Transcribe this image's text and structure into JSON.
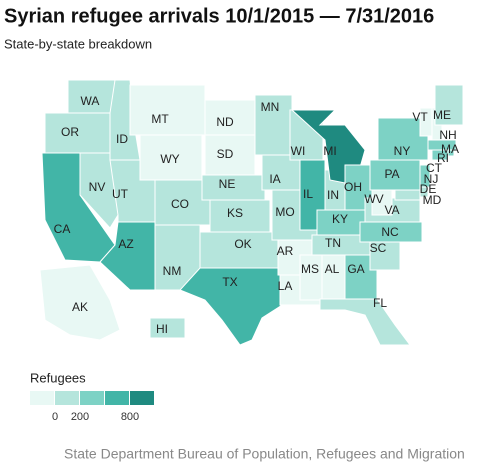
{
  "header": {
    "title": "Syrian refugee arrivals 10/1/2015 — 7/31/2016",
    "subtitle": "State-by-state breakdown"
  },
  "map": {
    "states": [
      {
        "label": "WA",
        "color": "#b5e5dc"
      },
      {
        "label": "OR",
        "color": "#b5e5dc"
      },
      {
        "label": "CA",
        "color": "#42b5a7"
      },
      {
        "label": "NV",
        "color": "#b5e5dc"
      },
      {
        "label": "ID",
        "color": "#b5e5dc"
      },
      {
        "label": "MT",
        "color": "#e8f8f4"
      },
      {
        "label": "WY",
        "color": "#e8f8f4"
      },
      {
        "label": "UT",
        "color": "#b5e5dc"
      },
      {
        "label": "CO",
        "color": "#b5e5dc"
      },
      {
        "label": "AZ",
        "color": "#42b5a7"
      },
      {
        "label": "NM",
        "color": "#b5e5dc"
      },
      {
        "label": "ND",
        "color": "#e8f8f4"
      },
      {
        "label": "SD",
        "color": "#e8f8f4"
      },
      {
        "label": "NE",
        "color": "#b5e5dc"
      },
      {
        "label": "KS",
        "color": "#b5e5dc"
      },
      {
        "label": "TX",
        "color": "#42b5a7"
      },
      {
        "label": "OK",
        "color": "#b5e5dc"
      },
      {
        "label": "MN",
        "color": "#b5e5dc"
      },
      {
        "label": "IA",
        "color": "#b5e5dc"
      },
      {
        "label": "MO",
        "color": "#b5e5dc"
      },
      {
        "label": "AR",
        "color": "#e8f8f4"
      },
      {
        "label": "LA",
        "color": "#e8f8f4"
      },
      {
        "label": "WI",
        "color": "#b5e5dc"
      },
      {
        "label": "IL",
        "color": "#42b5a7"
      },
      {
        "label": "IN",
        "color": "#b5e5dc"
      },
      {
        "label": "MI",
        "color": "#1f8a80"
      },
      {
        "label": "OH",
        "color": "#7dd2c5"
      },
      {
        "label": "KY",
        "color": "#7dd2c5"
      },
      {
        "label": "TN",
        "color": "#b5e5dc"
      },
      {
        "label": "MS",
        "color": "#e8f8f4"
      },
      {
        "label": "AL",
        "color": "#e8f8f4"
      },
      {
        "label": "GA",
        "color": "#7dd2c5"
      },
      {
        "label": "FL",
        "color": "#b5e5dc"
      },
      {
        "label": "SC",
        "color": "#b5e5dc"
      },
      {
        "label": "NC",
        "color": "#7dd2c5"
      },
      {
        "label": "VA",
        "color": "#b5e5dc"
      },
      {
        "label": "WV",
        "color": "#e8f8f4"
      },
      {
        "label": "PA",
        "color": "#7dd2c5"
      },
      {
        "label": "NY",
        "color": "#7dd2c5"
      },
      {
        "label": "VT",
        "color": "#e8f8f4"
      },
      {
        "label": "NH",
        "color": "#e8f8f4"
      },
      {
        "label": "ME",
        "color": "#b5e5dc"
      },
      {
        "label": "MA",
        "color": "#7dd2c5"
      },
      {
        "label": "RI",
        "color": "#7dd2c5"
      },
      {
        "label": "CT",
        "color": "#7dd2c5"
      },
      {
        "label": "NJ",
        "color": "#7dd2c5"
      },
      {
        "label": "DE",
        "color": "#b5e5dc"
      },
      {
        "label": "MD",
        "color": "#b5e5dc"
      },
      {
        "label": "AK",
        "color": "#e8f8f4"
      },
      {
        "label": "HI",
        "color": "#b5e5dc"
      }
    ]
  },
  "legend": {
    "title": "Refugees",
    "colors": [
      "#e8f8f4",
      "#b5e5dc",
      "#7dd2c5",
      "#42b5a7",
      "#1f8a80"
    ],
    "ticks": [
      0,
      200,
      800
    ]
  },
  "footer": {
    "source": "State Department Bureau of Population, Refugees and Migration"
  }
}
